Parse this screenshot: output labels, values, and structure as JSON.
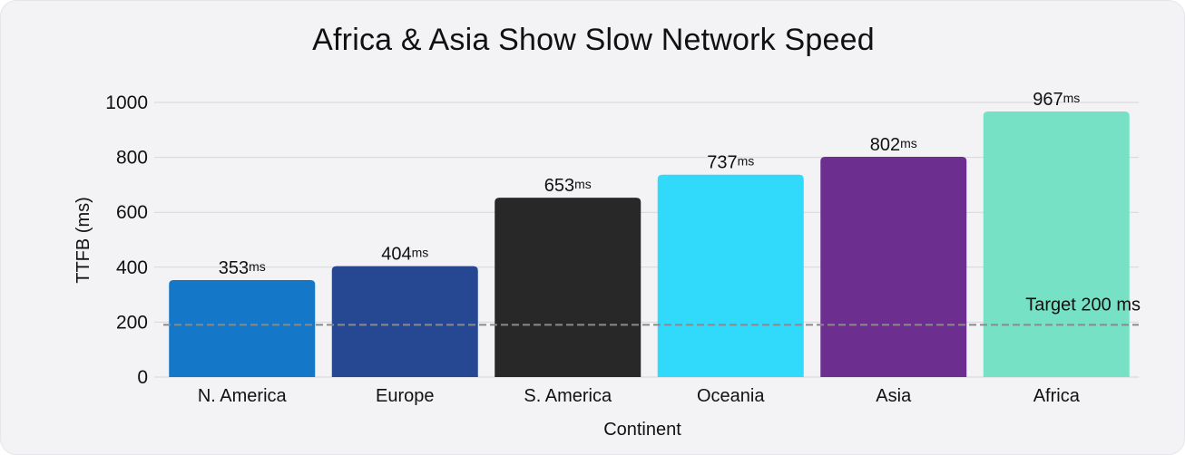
{
  "chart_data": {
    "type": "bar",
    "title": "Africa & Asia Show Slow Network Speed",
    "xlabel": "Continent",
    "ylabel": "TTFB (ms)",
    "ylim": [
      0,
      1000
    ],
    "yticks": [
      "0",
      "200",
      "400",
      "600",
      "800",
      "1000"
    ],
    "categories": [
      "N. America",
      "Europe",
      "S. America",
      "Oceania",
      "Asia",
      "Africa"
    ],
    "values": [
      353,
      404,
      653,
      737,
      802,
      967
    ],
    "value_unit": "ms",
    "colors": [
      "#1577c7",
      "#264893",
      "#282828",
      "#31d9fb",
      "#6c2f8f",
      "#76e1c5"
    ],
    "grid": true,
    "target": {
      "value": 200,
      "label": "Target 200 ms",
      "color": "#8a8a8a"
    }
  }
}
